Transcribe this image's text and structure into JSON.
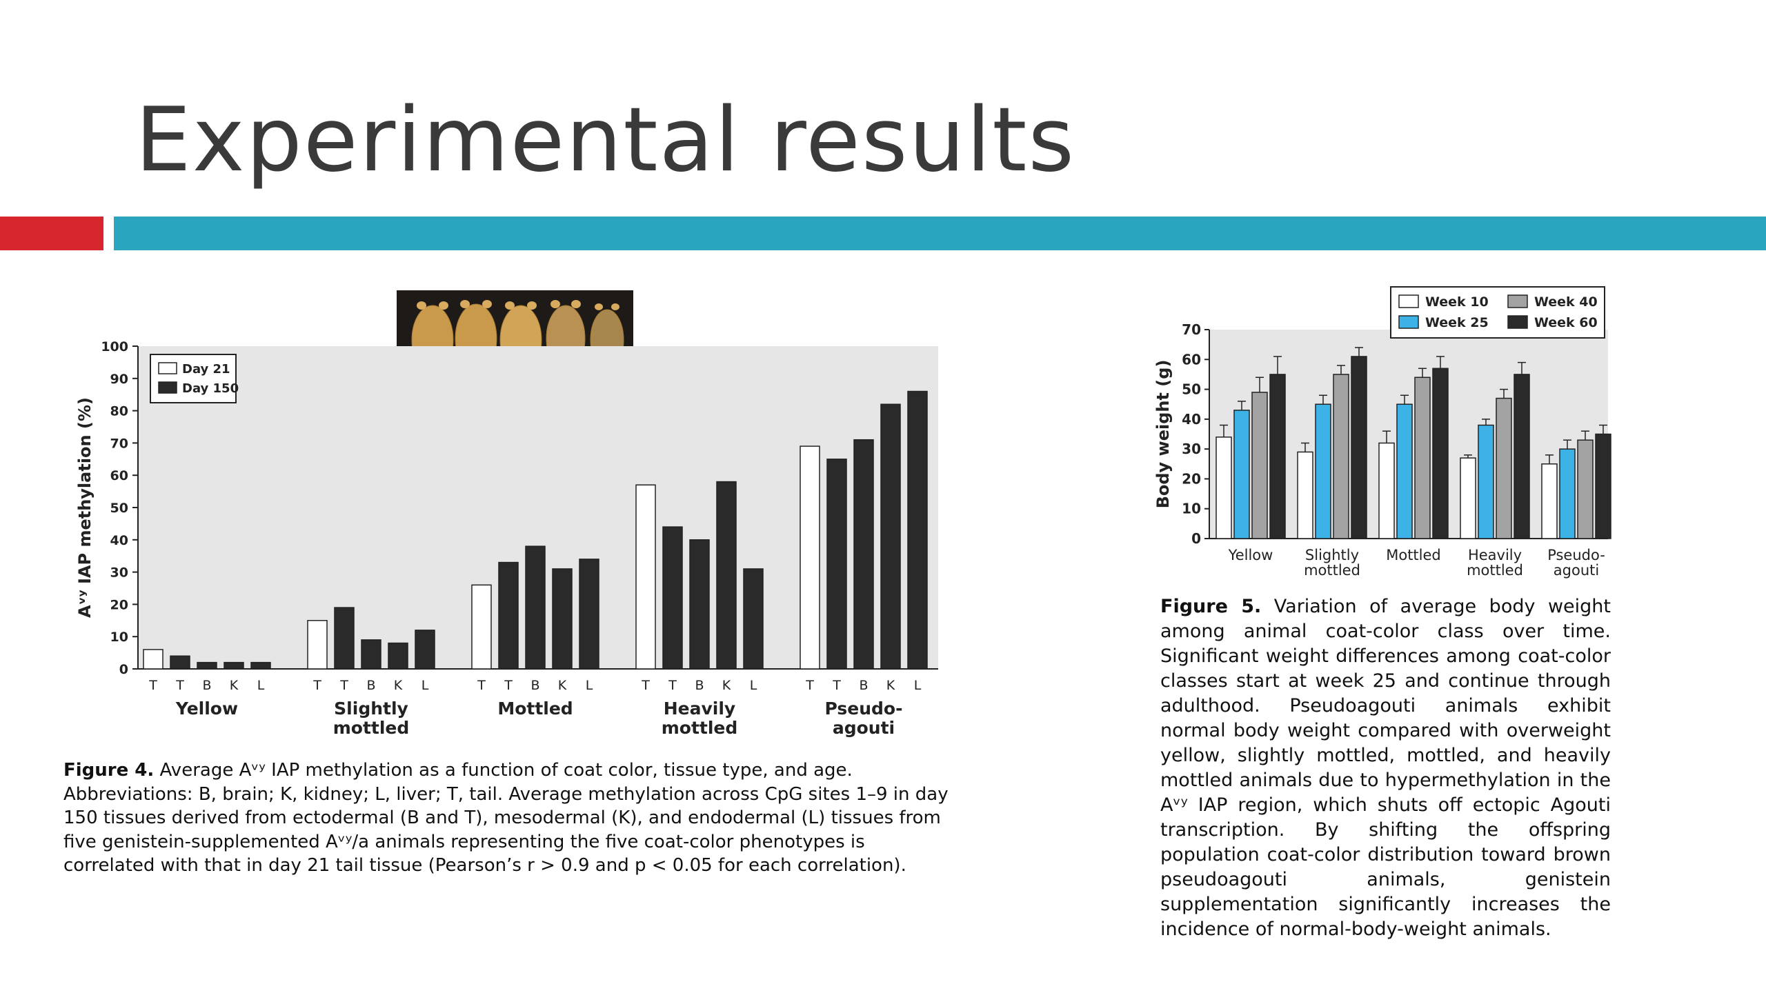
{
  "slide": {
    "title": "Experimental results"
  },
  "figure4": {
    "caption_label": "Figure 4.",
    "caption_text": " Average Aᵛʸ IAP methylation as a function of coat color, tissue type, and age. Abbreviations: B, brain; K, kidney; L, liver; T, tail. Average methylation across CpG sites 1–9 in day 150 tissues derived from ectodermal (B and T), mesodermal (K), and endodermal (L) tissues from five genistein-supplemented Aᵛʸ/a animals representing the five coat-color phenotypes is correlated with that in day 21 tail tissue (Pearson’s r > 0.9 and p < 0.05 for each correlation)."
  },
  "figure5": {
    "caption_label": "Figure 5.",
    "caption_text": " Variation of average body weight among animal coat-color class over time. Significant weight differences among coat-color classes start at week 25 and continue through adulthood. Pseudoagouti animals exhibit normal body weight compared with overweight yellow, slightly mottled, mottled, and heavily mottled animals due to hypermethylation in the Aᵛʸ IAP region, which shuts off ectopic Agouti transcription. By shifting the offspring population coat-color distribution toward brown pseudoagouti animals, genistein supplementation significantly increases the incidence of normal-body-weight animals."
  },
  "photo": {
    "icon": "mice-photo"
  },
  "chart_data": [
    {
      "type": "bar",
      "ylabel": "Aᵛʸ IAP methylation (%)",
      "xlabel": "",
      "ylim": [
        0,
        100
      ],
      "yticks": [
        0,
        10,
        20,
        30,
        40,
        50,
        60,
        70,
        80,
        90,
        100
      ],
      "grid": false,
      "legend_position": "top-left",
      "legend": [
        "Day 21",
        "Day 150"
      ],
      "group_names": [
        "Yellow",
        "Slightly\nmottled",
        "Mottled",
        "Heavily\nmottled",
        "Pseudo-\nagouti"
      ],
      "tissues": [
        "T",
        "T",
        "B",
        "K",
        "L"
      ],
      "groups": [
        {
          "values": [
            6,
            4,
            2,
            2,
            2
          ],
          "series": [
            "Day 21",
            "Day 150",
            "Day 150",
            "Day 150",
            "Day 150"
          ]
        },
        {
          "values": [
            15,
            19,
            9,
            8,
            12
          ],
          "series": [
            "Day 21",
            "Day 150",
            "Day 150",
            "Day 150",
            "Day 150"
          ]
        },
        {
          "values": [
            26,
            33,
            38,
            31,
            34
          ],
          "series": [
            "Day 21",
            "Day 150",
            "Day 150",
            "Day 150",
            "Day 150"
          ]
        },
        {
          "values": [
            57,
            44,
            40,
            58,
            31
          ],
          "series": [
            "Day 21",
            "Day 150",
            "Day 150",
            "Day 150",
            "Day 150"
          ]
        },
        {
          "values": [
            69,
            65,
            71,
            82,
            86
          ],
          "series": [
            "Day 21",
            "Day 150",
            "Day 150",
            "Day 150",
            "Day 150"
          ]
        }
      ],
      "colors": {
        "Day 21": "#ffffff",
        "Day 150": "#2a2a2a",
        "background": "#e6e6e6"
      }
    },
    {
      "type": "bar",
      "ylabel": "Body weight (g)",
      "xlabel": "",
      "ylim": [
        0,
        70
      ],
      "yticks": [
        0,
        10,
        20,
        30,
        40,
        50,
        60,
        70
      ],
      "grid": false,
      "legend_position": "top-right",
      "categories": [
        "Yellow",
        "Slightly\nmottled",
        "Mottled",
        "Heavily\nmottled",
        "Pseudo-\nagouti"
      ],
      "series": [
        {
          "name": "Week 10",
          "values": [
            34,
            29,
            32,
            27,
            25
          ],
          "errors": [
            4,
            3,
            4,
            1,
            3
          ],
          "color": "#ffffff"
        },
        {
          "name": "Week 25",
          "values": [
            43,
            45,
            45,
            38,
            30
          ],
          "errors": [
            3,
            3,
            3,
            2,
            3
          ],
          "color": "#3db2e6"
        },
        {
          "name": "Week 40",
          "values": [
            49,
            55,
            54,
            47,
            33
          ],
          "errors": [
            5,
            3,
            3,
            3,
            3
          ],
          "color": "#a3a3a3"
        },
        {
          "name": "Week 60",
          "values": [
            55,
            61,
            57,
            55,
            35
          ],
          "errors": [
            6,
            3,
            4,
            4,
            3
          ],
          "color": "#2a2a2a"
        }
      ],
      "colors": {
        "background": "#e6e6e6"
      }
    }
  ]
}
